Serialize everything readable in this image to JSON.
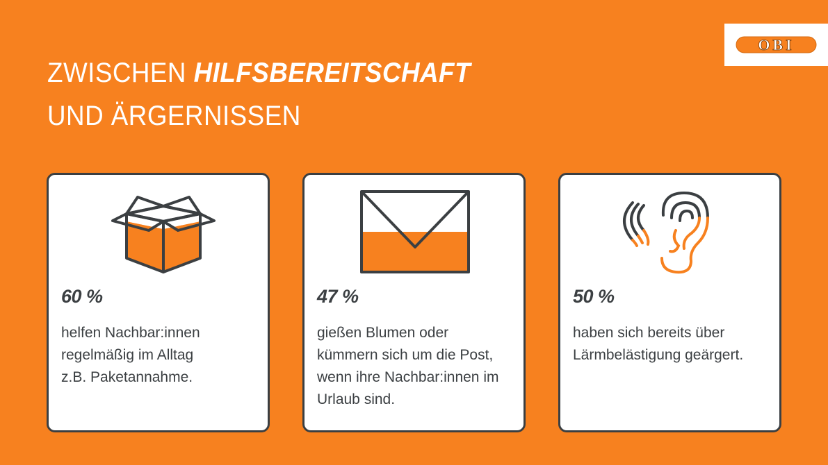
{
  "header": {
    "title_part1": "ZWISCHEN ",
    "title_bold": "HILFSBEREITSCHAFT",
    "title_line2": "UND ÄRGERNISSEN"
  },
  "logo": {
    "text": "OBI",
    "color": "#f7811f"
  },
  "colors": {
    "background": "#f7811f",
    "dark": "#3b3f42",
    "card": "#ffffff"
  },
  "cards": [
    {
      "icon": "box-icon",
      "percent": "60 %",
      "lines": [
        "helfen Nachbar:innen",
        "regelmäßig im Alltag",
        "z.B. Paketannahme."
      ]
    },
    {
      "icon": "envelope-icon",
      "percent": "47 %",
      "lines": [
        "gießen Blumen oder",
        "kümmern sich um die Post,",
        "wenn ihre Nachbar:innen im",
        "Urlaub sind."
      ]
    },
    {
      "icon": "ear-icon",
      "percent": "50 %",
      "lines": [
        "haben sich bereits über",
        "Lärmbelästigung geärgert."
      ]
    }
  ]
}
